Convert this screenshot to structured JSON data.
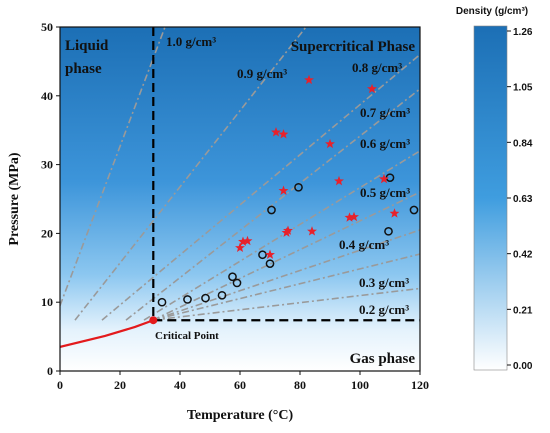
{
  "chart_data": {
    "type": "scatter",
    "xlabel": "Temperature (°C)",
    "ylabel": "Pressure (MPa)",
    "xlim": [
      0,
      120
    ],
    "ylim": [
      0,
      50
    ],
    "x_ticks": [
      "0",
      "20",
      "40",
      "60",
      "80",
      "100",
      "120"
    ],
    "y_ticks": [
      "0",
      "10",
      "20",
      "30",
      "40",
      "50"
    ],
    "grid": false,
    "legend": "none",
    "region_labels": {
      "liquid_line1": "Liquid",
      "liquid_line2": "phase",
      "supercritical": "Supercritical Phase",
      "gas": "Gas phase"
    },
    "critical_point": {
      "label": "Critical Point",
      "x": 31.1,
      "y": 7.38
    },
    "critical_temperature_line_x": 31.1,
    "critical_pressure_line_y": 7.38,
    "phase_boundary": [
      [
        0,
        3.5
      ],
      [
        15,
        5.1
      ],
      [
        25,
        6.4
      ],
      [
        31.1,
        7.38
      ]
    ],
    "isochores": [
      {
        "label": "1.0 g/cm³",
        "from": [
          0,
          9.5
        ],
        "to": [
          35,
          50
        ]
      },
      {
        "label": "0.9 g/cm³",
        "from": [
          5,
          7.4
        ],
        "to": [
          82,
          50
        ]
      },
      {
        "label": "0.8 g/cm³",
        "from": [
          14,
          7.4
        ],
        "to": [
          120,
          46
        ]
      },
      {
        "label": "0.7 g/cm³",
        "from": [
          22,
          7.4
        ],
        "to": [
          120,
          41
        ]
      },
      {
        "label": "0.6 g/cm³",
        "from": [
          28,
          7.4
        ],
        "to": [
          120,
          32
        ]
      },
      {
        "label": "0.5 g/cm³",
        "from": [
          31,
          7.4
        ],
        "to": [
          120,
          26
        ]
      },
      {
        "label": "0.4 g/cm³",
        "from": [
          31,
          7.4
        ],
        "to": [
          120,
          20.5
        ]
      },
      {
        "label": "0.3 g/cm³",
        "from": [
          31,
          7.4
        ],
        "to": [
          120,
          17
        ]
      },
      {
        "label": "0.2 g/cm³",
        "from": [
          31,
          7.4
        ],
        "to": [
          120,
          12
        ]
      }
    ],
    "series": [
      {
        "marker": "open-circle",
        "color": "#111111",
        "points": [
          [
            34,
            10
          ],
          [
            42.5,
            10.4
          ],
          [
            48.5,
            10.6
          ],
          [
            54,
            11
          ],
          [
            57.5,
            13.7
          ],
          [
            59,
            12.8
          ],
          [
            67.5,
            16.9
          ],
          [
            70,
            15.6
          ],
          [
            70.5,
            23.4
          ],
          [
            79.5,
            26.7
          ],
          [
            110,
            28.1
          ],
          [
            109.5,
            20.3
          ],
          [
            118,
            23.4
          ]
        ]
      },
      {
        "marker": "star",
        "color": "#e8212b",
        "points": [
          [
            60,
            17.9
          ],
          [
            61,
            18.8
          ],
          [
            62.5,
            18.9
          ],
          [
            70,
            16.9
          ],
          [
            72,
            34.7
          ],
          [
            74.5,
            34.4
          ],
          [
            74.5,
            26.2
          ],
          [
            75.5,
            20.1
          ],
          [
            76,
            20.4
          ],
          [
            84,
            20.3
          ],
          [
            83,
            42.3
          ],
          [
            90,
            33
          ],
          [
            93,
            27.6
          ],
          [
            96.5,
            22.3
          ],
          [
            98,
            22.4
          ],
          [
            104,
            41
          ],
          [
            108,
            27.9
          ],
          [
            111.5,
            22.9
          ]
        ]
      }
    ],
    "colorbar": {
      "title": "Density (g/cm³)",
      "ticks": [
        "1.26",
        "1.05",
        "0.84",
        "0.63",
        "0.42",
        "0.21",
        "0.00"
      ],
      "top_color": "#1c6fb5",
      "bottom_color": "#ffffff"
    },
    "colors": {
      "phase_line": "#e31a1c",
      "isochore": "#9a9a9a",
      "dashed_boundary": "#000000",
      "field_dark": "#1c6fb5",
      "field_mid": "#4da6e8",
      "field_light": "#ffffff"
    }
  }
}
